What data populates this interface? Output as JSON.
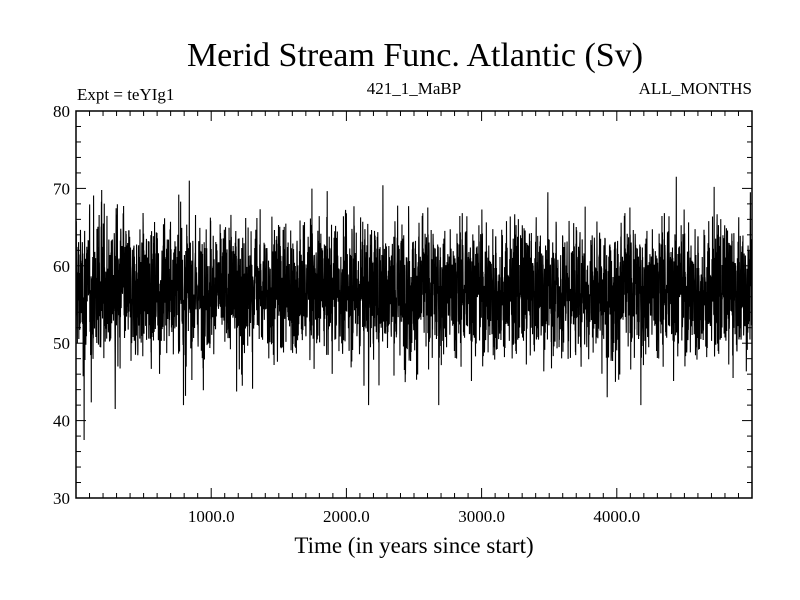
{
  "chart_data": {
    "type": "line",
    "title": "Merid Stream Func. Atlantic (Sv)",
    "subtitle_left": "Expt = teYIg1",
    "subtitle_center": "421_1_MaBP",
    "subtitle_right": "ALL_MONTHS",
    "xlabel": "Time (in years since start)",
    "ylabel": "",
    "xlim": [
      0,
      5000
    ],
    "ylim": [
      30,
      80
    ],
    "x_ticks": [
      1000,
      2000,
      3000,
      4000
    ],
    "x_tick_labels": [
      "1000.0",
      "2000.0",
      "3000.0",
      "4000.0"
    ],
    "y_ticks": [
      30,
      40,
      50,
      60,
      70,
      80
    ],
    "y_tick_labels": [
      "30",
      "40",
      "50",
      "60",
      "70",
      "80"
    ],
    "grid": false,
    "series": [
      {
        "color": "#000000",
        "mean": 57,
        "typical_band": [
          50,
          63
        ],
        "x_step": 1,
        "x_start": 1,
        "x_end": 4999,
        "notable_points": [
          {
            "x": 60,
            "y": 37.5
          },
          {
            "x": 290,
            "y": 41.5
          },
          {
            "x": 810,
            "y": 43.2
          },
          {
            "x": 2270,
            "y": 70.4
          },
          {
            "x": 2130,
            "y": 44.5
          },
          {
            "x": 3990,
            "y": 45.0
          },
          {
            "x": 4440,
            "y": 71.5
          },
          {
            "x": 4860,
            "y": 45.5
          },
          {
            "x": 4720,
            "y": 70.2
          },
          {
            "x": 190,
            "y": 69.8
          },
          {
            "x": 760,
            "y": 69.2
          }
        ]
      }
    ]
  }
}
